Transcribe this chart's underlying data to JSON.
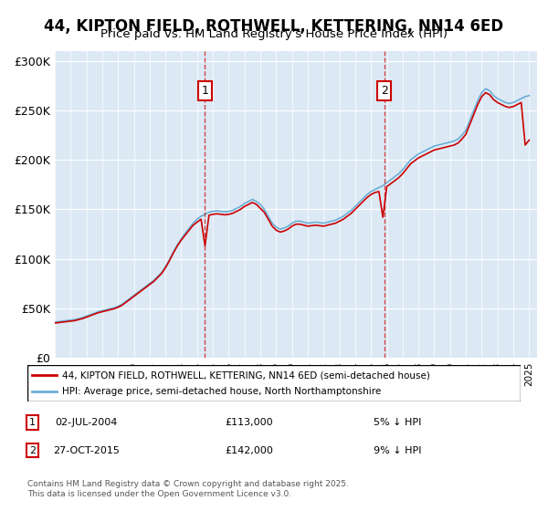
{
  "title": "44, KIPTON FIELD, ROTHWELL, KETTERING, NN14 6ED",
  "subtitle": "Price paid vs. HM Land Registry's House Price Index (HPI)",
  "title_fontsize": 13,
  "subtitle_fontsize": 11,
  "background_color": "#ffffff",
  "plot_bg_color": "#dce9f5",
  "hpi_color": "#6aaed6",
  "price_color": "#cc0000",
  "ylabel": "",
  "ylim": [
    0,
    310000
  ],
  "yticks": [
    0,
    50000,
    100000,
    150000,
    200000,
    250000,
    300000
  ],
  "ytick_labels": [
    "£0",
    "£50K",
    "£100K",
    "£150K",
    "£200K",
    "£250K",
    "£300K"
  ],
  "marker1_date": 2004.5,
  "marker1_price": 113000,
  "marker1_label": "02-JUL-2004",
  "marker1_amount": "£113,000",
  "marker1_pct": "5% ↓ HPI",
  "marker2_date": 2015.83,
  "marker2_price": 142000,
  "marker2_label": "27-OCT-2015",
  "marker2_amount": "£142,000",
  "marker2_pct": "9% ↓ HPI",
  "legend_line1": "44, KIPTON FIELD, ROTHWELL, KETTERING, NN14 6ED (semi-detached house)",
  "legend_line2": "HPI: Average price, semi-detached house, North Northamptonshire",
  "footer": "Contains HM Land Registry data © Crown copyright and database right 2025.\nThis data is licensed under the Open Government Licence v3.0.",
  "hpi_data": {
    "years": [
      1995.0,
      1995.25,
      1995.5,
      1995.75,
      1996.0,
      1996.25,
      1996.5,
      1996.75,
      1997.0,
      1997.25,
      1997.5,
      1997.75,
      1998.0,
      1998.25,
      1998.5,
      1998.75,
      1999.0,
      1999.25,
      1999.5,
      1999.75,
      2000.0,
      2000.25,
      2000.5,
      2000.75,
      2001.0,
      2001.25,
      2001.5,
      2001.75,
      2002.0,
      2002.25,
      2002.5,
      2002.75,
      2003.0,
      2003.25,
      2003.5,
      2003.75,
      2004.0,
      2004.25,
      2004.5,
      2004.75,
      2005.0,
      2005.25,
      2005.5,
      2005.75,
      2006.0,
      2006.25,
      2006.5,
      2006.75,
      2007.0,
      2007.25,
      2007.5,
      2007.75,
      2008.0,
      2008.25,
      2008.5,
      2008.75,
      2009.0,
      2009.25,
      2009.5,
      2009.75,
      2010.0,
      2010.25,
      2010.5,
      2010.75,
      2011.0,
      2011.25,
      2011.5,
      2011.75,
      2012.0,
      2012.25,
      2012.5,
      2012.75,
      2013.0,
      2013.25,
      2013.5,
      2013.75,
      2014.0,
      2014.25,
      2014.5,
      2014.75,
      2015.0,
      2015.25,
      2015.5,
      2015.75,
      2016.0,
      2016.25,
      2016.5,
      2016.75,
      2017.0,
      2017.25,
      2017.5,
      2017.75,
      2018.0,
      2018.25,
      2018.5,
      2018.75,
      2019.0,
      2019.25,
      2019.5,
      2019.75,
      2020.0,
      2020.25,
      2020.5,
      2020.75,
      2021.0,
      2021.25,
      2021.5,
      2021.75,
      2022.0,
      2022.25,
      2022.5,
      2022.75,
      2023.0,
      2023.25,
      2023.5,
      2023.75,
      2024.0,
      2024.25,
      2024.5,
      2024.75,
      2025.0
    ],
    "values": [
      36000,
      36500,
      37000,
      37500,
      38000,
      38500,
      39500,
      40500,
      42000,
      43500,
      45000,
      46500,
      47500,
      48500,
      49500,
      50500,
      52000,
      54000,
      57000,
      60000,
      63000,
      66000,
      69000,
      72000,
      75000,
      78000,
      82000,
      86000,
      92000,
      99000,
      107000,
      114000,
      120000,
      126000,
      131000,
      136000,
      140000,
      143000,
      145000,
      147000,
      148000,
      148500,
      148000,
      147500,
      148000,
      149000,
      151000,
      153000,
      156000,
      158000,
      160000,
      158000,
      155000,
      150000,
      143000,
      136000,
      132000,
      130000,
      131000,
      133000,
      136000,
      138000,
      138000,
      137000,
      136000,
      136500,
      137000,
      136500,
      136000,
      137000,
      138000,
      139000,
      141000,
      143000,
      146000,
      149000,
      153000,
      157000,
      161000,
      165000,
      168000,
      170000,
      172000,
      174000,
      177000,
      180000,
      183000,
      186000,
      190000,
      195000,
      200000,
      203000,
      206000,
      208000,
      210000,
      212000,
      214000,
      215000,
      216000,
      217000,
      218000,
      219000,
      221000,
      225000,
      230000,
      240000,
      250000,
      260000,
      268000,
      272000,
      270000,
      265000,
      262000,
      260000,
      258000,
      257000,
      258000,
      260000,
      262000,
      264000,
      265000
    ]
  },
  "price_data": {
    "years": [
      1995.0,
      1995.25,
      1995.5,
      1995.75,
      1996.0,
      1996.25,
      1996.5,
      1996.75,
      1997.0,
      1997.25,
      1997.5,
      1997.75,
      1998.0,
      1998.25,
      1998.5,
      1998.75,
      1999.0,
      1999.25,
      1999.5,
      1999.75,
      2000.0,
      2000.25,
      2000.5,
      2000.75,
      2001.0,
      2001.25,
      2001.5,
      2001.75,
      2002.0,
      2002.25,
      2002.5,
      2002.75,
      2003.0,
      2003.25,
      2003.5,
      2003.75,
      2004.0,
      2004.25,
      2004.5,
      2004.75,
      2005.0,
      2005.25,
      2005.5,
      2005.75,
      2006.0,
      2006.25,
      2006.5,
      2006.75,
      2007.0,
      2007.25,
      2007.5,
      2007.75,
      2008.0,
      2008.25,
      2008.5,
      2008.75,
      2009.0,
      2009.25,
      2009.5,
      2009.75,
      2010.0,
      2010.25,
      2010.5,
      2010.75,
      2011.0,
      2011.25,
      2011.5,
      2011.75,
      2012.0,
      2012.25,
      2012.5,
      2012.75,
      2013.0,
      2013.25,
      2013.5,
      2013.75,
      2014.0,
      2014.25,
      2014.5,
      2014.75,
      2015.0,
      2015.25,
      2015.5,
      2015.75,
      2016.0,
      2016.25,
      2016.5,
      2016.75,
      2017.0,
      2017.25,
      2017.5,
      2017.75,
      2018.0,
      2018.25,
      2018.5,
      2018.75,
      2019.0,
      2019.25,
      2019.5,
      2019.75,
      2020.0,
      2020.25,
      2020.5,
      2020.75,
      2021.0,
      2021.25,
      2021.5,
      2021.75,
      2022.0,
      2022.25,
      2022.5,
      2022.75,
      2023.0,
      2023.25,
      2023.5,
      2023.75,
      2024.0,
      2024.25,
      2024.5,
      2024.75,
      2025.0
    ],
    "values": [
      35000,
      35500,
      36000,
      36500,
      37000,
      37500,
      38500,
      39500,
      41000,
      42500,
      44000,
      45500,
      46500,
      47500,
      48500,
      49500,
      51000,
      53000,
      56000,
      59000,
      62000,
      65000,
      68000,
      71000,
      74000,
      77000,
      81000,
      85000,
      91000,
      98000,
      106000,
      113000,
      119000,
      124000,
      129000,
      134000,
      137000,
      140000,
      113000,
      144000,
      145000,
      145500,
      145000,
      144500,
      145000,
      146000,
      148000,
      150000,
      153000,
      155000,
      157000,
      155000,
      151000,
      147000,
      140000,
      133000,
      129000,
      127000,
      128000,
      130000,
      133000,
      135000,
      135000,
      134000,
      133000,
      133500,
      134000,
      133500,
      133000,
      134000,
      135000,
      136000,
      138000,
      140000,
      143000,
      146000,
      150000,
      154000,
      158000,
      162000,
      165000,
      167000,
      168000,
      142000,
      173000,
      176000,
      179000,
      182000,
      186000,
      191000,
      196000,
      199000,
      202000,
      204000,
      206000,
      208000,
      210000,
      211000,
      212000,
      213000,
      214000,
      215000,
      217000,
      221000,
      226000,
      236000,
      246000,
      256000,
      264000,
      268000,
      266000,
      261000,
      258000,
      256000,
      254000,
      253000,
      254000,
      256000,
      258000,
      215000,
      220000
    ]
  }
}
